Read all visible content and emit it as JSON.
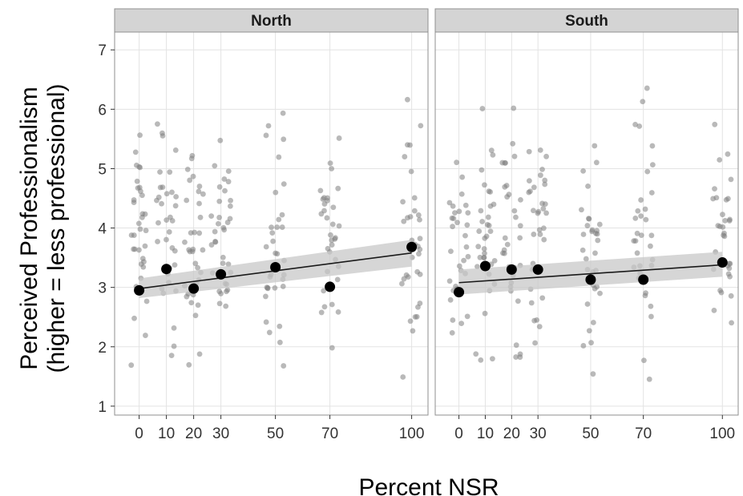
{
  "chart_data": {
    "type": "scatter",
    "xlabel": "Percent NSR",
    "ylabel": [
      "Perceived Professionalism",
      "(higher = less professional)"
    ],
    "xlim": [
      -9,
      106
    ],
    "ylim": [
      0.85,
      7.3
    ],
    "x_ticks": [
      0,
      10,
      20,
      30,
      50,
      70,
      100
    ],
    "y_ticks": [
      1,
      2,
      3,
      4,
      5,
      6,
      7
    ],
    "grid": true,
    "colors": {
      "panel_bg": "#ffffff",
      "panel_border": "#8f8f8f",
      "grid": "#e3e3e3",
      "strip_bg": "#d4d4d4",
      "points": "#7f7f7f",
      "means": "#000000",
      "fit_line": "#1a1a1a",
      "ribbon": "#c8c8c8"
    },
    "panels": [
      {
        "name": "North",
        "means": [
          {
            "x": 0,
            "y": 2.95
          },
          {
            "x": 10,
            "y": 3.31
          },
          {
            "x": 20,
            "y": 2.98
          },
          {
            "x": 30,
            "y": 3.22
          },
          {
            "x": 50,
            "y": 3.34
          },
          {
            "x": 70,
            "y": 3.01
          },
          {
            "x": 100,
            "y": 3.68
          }
        ],
        "fit": {
          "x0": 0,
          "y0": 2.98,
          "x1": 100,
          "y1": 3.58,
          "ci0": [
            2.82,
            3.15
          ],
          "ci1": [
            3.35,
            3.8
          ]
        }
      },
      {
        "name": "South",
        "means": [
          {
            "x": 0,
            "y": 2.92
          },
          {
            "x": 10,
            "y": 3.36
          },
          {
            "x": 20,
            "y": 3.3
          },
          {
            "x": 30,
            "y": 3.3
          },
          {
            "x": 50,
            "y": 3.13
          },
          {
            "x": 70,
            "y": 3.13
          },
          {
            "x": 100,
            "y": 3.42
          }
        ],
        "fit": {
          "x0": 0,
          "y0": 3.08,
          "x1": 100,
          "y1": 3.38,
          "ci0": [
            2.88,
            3.3
          ],
          "ci1": [
            3.18,
            3.6
          ]
        }
      }
    ],
    "jitter_points": {
      "description_free_note": "",
      "per_group_count": 34,
      "x_jitter": 3.6,
      "y_range": [
        1.0,
        6.8
      ]
    }
  }
}
